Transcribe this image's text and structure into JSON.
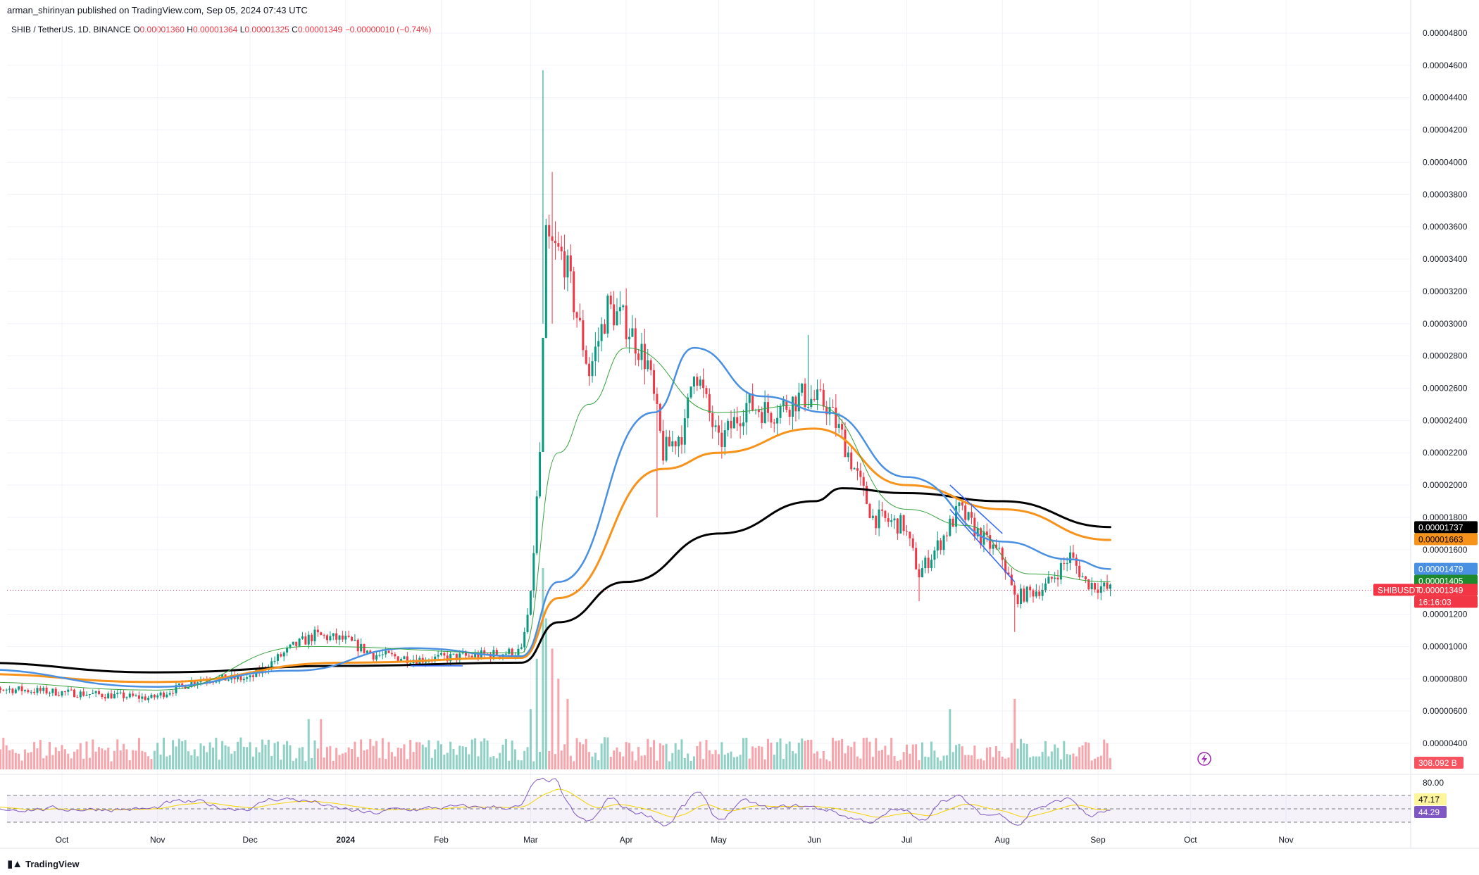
{
  "header": {
    "published": "arman_shirinyan published on TradingView.com, Sep 05, 2024 07:43 UTC"
  },
  "legend": {
    "symbol": "SHIB / TetherUS, 1D, BINANCE",
    "o_label": "O",
    "o_value": "0.00001360",
    "h_label": "H",
    "h_value": "0.00001364",
    "l_label": "L",
    "l_value": "0.00001325",
    "c_label": "C",
    "c_value": "0.00001349",
    "change": "−0.00000010 (−0.74%)"
  },
  "footer": {
    "brand": "TradingView"
  },
  "chart_data": {
    "type": "candlestick",
    "symbol": "SHIBUSDT",
    "price_axis": {
      "ylim": [
        3.2e-06,
        4.9e-06
      ],
      "ticks": [
        "0.00004800",
        "0.00004600",
        "0.00004400",
        "0.00004200",
        "0.00004000",
        "0.00003800",
        "0.00003600",
        "0.00003400",
        "0.00003200",
        "0.00003000",
        "0.00002800",
        "0.00002600",
        "0.00002400",
        "0.00002200",
        "0.00002000",
        "0.00001800",
        "0.00001600",
        "0.00001200",
        "0.00001000",
        "0.00000800",
        "0.00000600",
        "0.00000400"
      ],
      "tick_values": [
        4.8e-05,
        4.6e-05,
        4.4e-05,
        4.2e-05,
        4e-05,
        3.8e-05,
        3.6e-05,
        3.4e-05,
        3.2e-05,
        3e-05,
        2.8e-05,
        2.6e-05,
        2.4e-05,
        2.2e-05,
        2e-05,
        1.8e-05,
        1.6e-05,
        1.2e-05,
        1e-05,
        8e-06,
        6e-06,
        4e-06
      ]
    },
    "time_axis": {
      "labels": [
        {
          "label": "Oct",
          "bold": false,
          "date": "2023-10-01"
        },
        {
          "label": "Nov",
          "bold": false,
          "date": "2023-11-01"
        },
        {
          "label": "Dec",
          "bold": false,
          "date": "2023-12-01"
        },
        {
          "label": "2024",
          "bold": true,
          "date": "2024-01-01"
        },
        {
          "label": "Feb",
          "bold": false,
          "date": "2024-02-01"
        },
        {
          "label": "Mar",
          "bold": false,
          "date": "2024-03-01"
        },
        {
          "label": "Apr",
          "bold": false,
          "date": "2024-04-01"
        },
        {
          "label": "May",
          "bold": false,
          "date": "2024-05-01"
        },
        {
          "label": "Jun",
          "bold": false,
          "date": "2024-06-01"
        },
        {
          "label": "Jul",
          "bold": false,
          "date": "2024-07-01"
        },
        {
          "label": "Aug",
          "bold": false,
          "date": "2024-08-01"
        },
        {
          "label": "Sep",
          "bold": false,
          "date": "2024-09-01"
        },
        {
          "label": "Oct",
          "bold": false,
          "date": "2024-10-01"
        },
        {
          "label": "Nov",
          "bold": false,
          "date": "2024-11-01"
        }
      ]
    },
    "price_keypoints": [
      [
        "2023-09-01",
        7.5e-06
      ],
      [
        "2023-10-15",
        7e-06
      ],
      [
        "2023-10-30",
        6.8e-06
      ],
      [
        "2023-11-15",
        8e-06
      ],
      [
        "2023-12-01",
        8e-06
      ],
      [
        "2023-12-15",
        1e-05
      ],
      [
        "2023-12-22",
        1.07e-05
      ],
      [
        "2024-01-01",
        1.04e-05
      ],
      [
        "2024-01-10",
        9.5e-06
      ],
      [
        "2024-01-25",
        9.2e-06
      ],
      [
        "2024-02-10",
        9.4e-06
      ],
      [
        "2024-02-27",
        9.7e-06
      ],
      [
        "2024-03-01",
        1.3e-05
      ],
      [
        "2024-03-04",
        2.2e-05
      ],
      [
        "2024-03-06",
        3.5e-05
      ],
      [
        "2024-03-12",
        3.4e-05
      ],
      [
        "2024-03-20",
        2.7e-05
      ],
      [
        "2024-03-26",
        3.1e-05
      ],
      [
        "2024-04-01",
        3e-05
      ],
      [
        "2024-04-08",
        2.75e-05
      ],
      [
        "2024-04-13",
        2.2e-05
      ],
      [
        "2024-04-20",
        2.35e-05
      ],
      [
        "2024-04-23",
        2.75e-05
      ],
      [
        "2024-05-01",
        2.25e-05
      ],
      [
        "2024-05-10",
        2.5e-05
      ],
      [
        "2024-05-18",
        2.45e-05
      ],
      [
        "2024-05-28",
        2.55e-05
      ],
      [
        "2024-06-05",
        2.5e-05
      ],
      [
        "2024-06-10",
        2.3e-05
      ],
      [
        "2024-06-20",
        1.8e-05
      ],
      [
        "2024-06-30",
        1.75e-05
      ],
      [
        "2024-07-05",
        1.45e-05
      ],
      [
        "2024-07-12",
        1.65e-05
      ],
      [
        "2024-07-18",
        1.85e-05
      ],
      [
        "2024-07-25",
        1.68e-05
      ],
      [
        "2024-08-01",
        1.55e-05
      ],
      [
        "2024-08-05",
        1.3e-05
      ],
      [
        "2024-08-15",
        1.37e-05
      ],
      [
        "2024-08-23",
        1.56e-05
      ],
      [
        "2024-08-28",
        1.4e-05
      ],
      [
        "2024-09-05",
        1.35e-05
      ]
    ],
    "spikes": [
      {
        "date": "2024-03-05",
        "high": 4.57e-05,
        "low": 3e-05
      },
      {
        "date": "2024-03-08",
        "high": 3.94e-05,
        "low": 3e-05
      },
      {
        "date": "2024-04-11",
        "low": 1.8e-05
      },
      {
        "date": "2024-05-30",
        "high": 2.93e-05
      },
      {
        "date": "2024-07-05",
        "low": 1.28e-05
      },
      {
        "date": "2024-08-05",
        "low": 1.09e-05
      }
    ],
    "moving_averages": [
      {
        "color": "#000000",
        "width": 3,
        "points": [
          [
            "2023-09-01",
            9e-06
          ],
          [
            "2023-11-01",
            8.4e-06
          ],
          [
            "2024-01-01",
            8.8e-06
          ],
          [
            "2024-02-27",
            9e-06
          ],
          [
            "2024-03-10",
            1.15e-05
          ],
          [
            "2024-04-01",
            1.4e-05
          ],
          [
            "2024-05-01",
            1.7e-05
          ],
          [
            "2024-06-01",
            1.9e-05
          ],
          [
            "2024-06-10",
            1.98e-05
          ],
          [
            "2024-07-01",
            1.95e-05
          ],
          [
            "2024-08-01",
            1.9e-05
          ],
          [
            "2024-09-05",
            1.74e-05
          ]
        ]
      },
      {
        "color": "#f7931a",
        "width": 3,
        "points": [
          [
            "2023-09-01",
            8.3e-06
          ],
          [
            "2023-11-01",
            7.8e-06
          ],
          [
            "2024-01-01",
            9e-06
          ],
          [
            "2024-02-27",
            9.3e-06
          ],
          [
            "2024-03-10",
            1.3e-05
          ],
          [
            "2024-04-13",
            2.1e-05
          ],
          [
            "2024-05-01",
            2.2e-05
          ],
          [
            "2024-06-01",
            2.35e-05
          ],
          [
            "2024-07-01",
            2e-05
          ],
          [
            "2024-08-01",
            1.85e-05
          ],
          [
            "2024-09-05",
            1.66e-05
          ]
        ]
      },
      {
        "color": "#4a90e2",
        "width": 2.5,
        "points": [
          [
            "2023-09-01",
            8.6e-06
          ],
          [
            "2023-11-01",
            7.5e-06
          ],
          [
            "2023-12-15",
            8.5e-06
          ],
          [
            "2024-01-22",
            9.9e-06
          ],
          [
            "2024-02-27",
            9.4e-06
          ],
          [
            "2024-03-10",
            1.4e-05
          ],
          [
            "2024-04-10",
            2.45e-05
          ],
          [
            "2024-04-23",
            2.85e-05
          ],
          [
            "2024-05-15",
            2.55e-05
          ],
          [
            "2024-06-05",
            2.45e-05
          ],
          [
            "2024-07-01",
            2.05e-05
          ],
          [
            "2024-08-01",
            1.65e-05
          ],
          [
            "2024-08-23",
            1.54e-05
          ],
          [
            "2024-09-05",
            1.48e-05
          ]
        ]
      },
      {
        "color": "#36a33e",
        "width": 1,
        "points": [
          [
            "2023-09-01",
            7.8e-06
          ],
          [
            "2023-11-01",
            7.3e-06
          ],
          [
            "2023-12-20",
            1e-05
          ],
          [
            "2024-02-27",
            9.6e-06
          ],
          [
            "2024-03-10",
            2.2e-05
          ],
          [
            "2024-03-20",
            2.5e-05
          ],
          [
            "2024-04-01",
            2.85e-05
          ],
          [
            "2024-05-01",
            2.45e-05
          ],
          [
            "2024-06-01",
            2.5e-05
          ],
          [
            "2024-07-01",
            1.85e-05
          ],
          [
            "2024-07-20",
            1.75e-05
          ],
          [
            "2024-08-10",
            1.45e-05
          ],
          [
            "2024-09-05",
            1.4e-05
          ]
        ]
      }
    ],
    "trendlines": [
      {
        "from": [
          "2024-07-15",
          2e-05
        ],
        "to": [
          "2024-08-01",
          1.7e-05
        ]
      },
      {
        "from": [
          "2024-07-15",
          1.85e-05
        ],
        "to": [
          "2024-08-05",
          1.4e-05
        ]
      },
      {
        "from": [
          "2024-01-22",
          8.8e-06
        ],
        "to": [
          "2024-02-08",
          8.8e-06
        ]
      }
    ],
    "current_price_line": 1.349e-05,
    "price_badges": [
      {
        "label": "0.00001737",
        "value": 1.737e-05,
        "bg": "#000000",
        "fg": "#ffffff"
      },
      {
        "label": "0.00001663",
        "value": 1.663e-05,
        "bg": "#f7931a",
        "fg": "#000000"
      },
      {
        "label": "0.00001479",
        "value": 1.479e-05,
        "bg": "#4a90e2",
        "fg": "#ffffff"
      },
      {
        "label": "0.00001405",
        "value": 1.405e-05,
        "bg": "#1e8a2e",
        "fg": "#ffffff"
      },
      {
        "label": "0.00001349",
        "value": 1.349e-05,
        "bg": "#f23645",
        "fg": "#ffffff"
      }
    ],
    "symbol_tag": "SHIBUSDT",
    "countdown": "16:16:03",
    "volume": {
      "last_value": "308.092 B",
      "spikes": [
        [
          "2024-03-01",
          0.3
        ],
        [
          "2024-03-03",
          0.55
        ],
        [
          "2024-03-05",
          1.0
        ],
        [
          "2024-03-06",
          0.75
        ],
        [
          "2024-03-08",
          0.6
        ],
        [
          "2024-03-10",
          0.45
        ],
        [
          "2024-03-13",
          0.35
        ],
        [
          "2024-07-15",
          0.3
        ],
        [
          "2024-08-05",
          0.35
        ],
        [
          "2023-12-20",
          0.25
        ],
        [
          "2023-12-24",
          0.25
        ]
      ]
    },
    "rsi": {
      "ticks": [
        "80.00"
      ],
      "levels": [
        70,
        50,
        30
      ],
      "badges": [
        {
          "label": "47.17",
          "bg": "#fff59d",
          "fg": "#000000"
        },
        {
          "label": "44.29",
          "bg": "#7e57c2",
          "fg": "#ffffff"
        }
      ]
    }
  }
}
